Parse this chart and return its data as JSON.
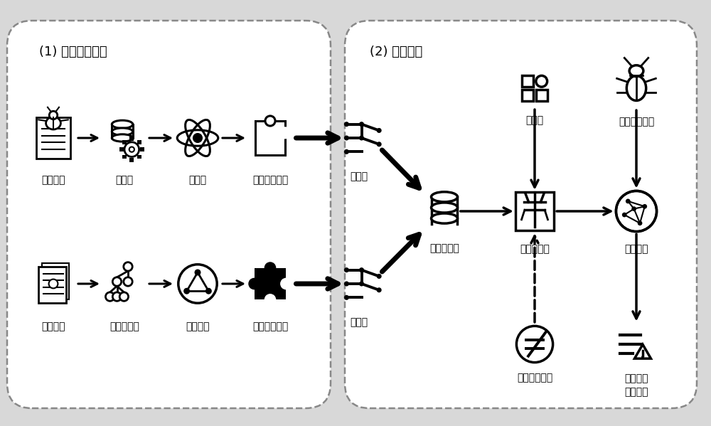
{
  "bg_color": "#e8e8e8",
  "box1_label": "(1) 语义特征抽取",
  "box2_label": "(2) 模型构建",
  "left_items_top": [
    "缺陷报告",
    "预处理",
    "词嵌入",
    "问题语义向量"
  ],
  "left_items_bottom": [
    "项目代码",
    "抽象语法树",
    "代码嵌入",
    "功能语义向量"
  ],
  "hidden_layer_top": "隐藏层",
  "hidden_layer_bottom": "隐藏层",
  "label_inst": "实例特征集",
  "label_lr": "逻辑回归层",
  "label_loc": "定位模型",
  "label_cat": "类标签",
  "label_bug": "新的缺陷报告",
  "label_imb": "不平衡类处理",
  "label_list": "潜在可疑\n函数列表",
  "font_size_label": 12,
  "font_size_item": 10,
  "font_size_section": 13
}
